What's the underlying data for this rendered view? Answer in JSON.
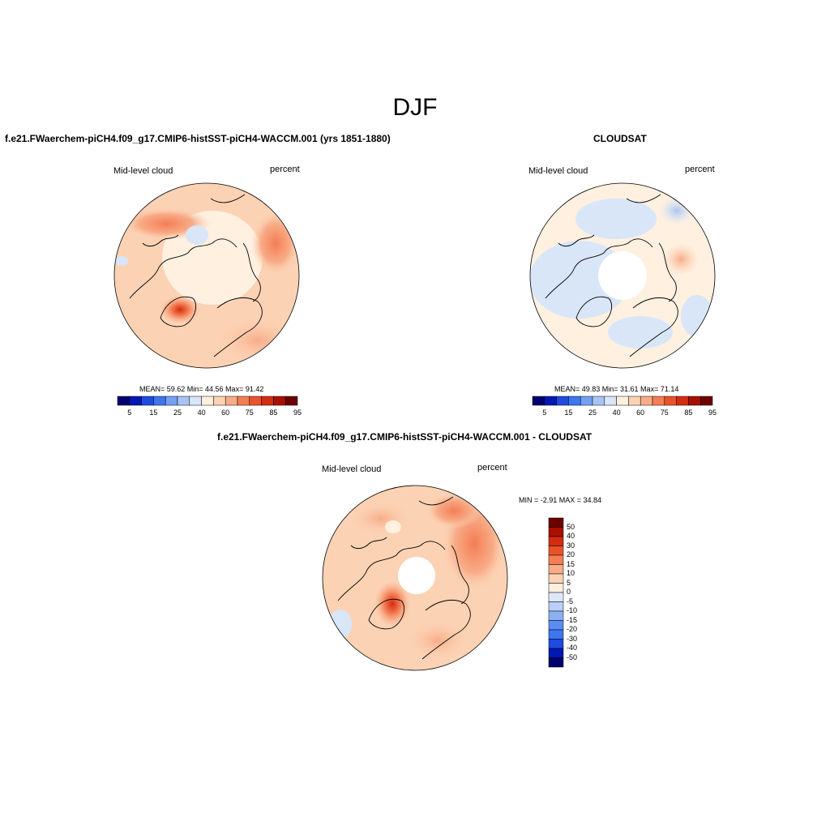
{
  "title": "DJF",
  "colors": {
    "abs_scale": [
      "#00006e",
      "#0018b4",
      "#1f4ae0",
      "#3d76f0",
      "#74a0f4",
      "#a8c4f4",
      "#d8e6f8",
      "#fff0e0",
      "#fcd2b4",
      "#f8ac88",
      "#f47e54",
      "#ec5228",
      "#d42c10",
      "#a81000",
      "#6e0000"
    ],
    "diff_scale": [
      "#00006e",
      "#0018b4",
      "#1f4ae0",
      "#3d76f0",
      "#5c8cf2",
      "#8cb0f4",
      "#b8cff6",
      "#dce8fa",
      "#fff0e0",
      "#fcd2b4",
      "#f8ac88",
      "#f47e54",
      "#ec5228",
      "#d42c10",
      "#a81000",
      "#6e0000"
    ],
    "land_outline": "#000000"
  },
  "panels": {
    "model": {
      "title": "f.e21.FWaerchem-piCH4.f09_g17.CMIP6-histSST-piCH4-WACCM.001 (yrs 1851-1880)",
      "variable": "Mid-level cloud",
      "units": "percent",
      "stats": "MEAN=  59.62  Min=  44.56  Max=  91.42",
      "colorbar_ticks": [
        "5",
        "15",
        "25",
        "40",
        "60",
        "75",
        "85",
        "95"
      ]
    },
    "obs": {
      "title": "CLOUDSAT",
      "variable": "Mid-level cloud",
      "units": "percent",
      "stats": "MEAN=  49.83  Min=  31.61  Max=  71.14",
      "colorbar_ticks": [
        "5",
        "15",
        "25",
        "40",
        "60",
        "75",
        "85",
        "95"
      ]
    },
    "diff": {
      "title": "f.e21.FWaerchem-piCH4.f09_g17.CMIP6-histSST-piCH4-WACCM.001 - CLOUDSAT",
      "variable": "Mid-level cloud",
      "units": "percent",
      "stats": "MIN =  -2.91 MAX =  34.84",
      "colorbar_ticks": [
        "50",
        "40",
        "30",
        "20",
        "15",
        "10",
        "5",
        "0",
        "-5",
        "-10",
        "-15",
        "-20",
        "-30",
        "-40",
        "-50"
      ]
    }
  }
}
